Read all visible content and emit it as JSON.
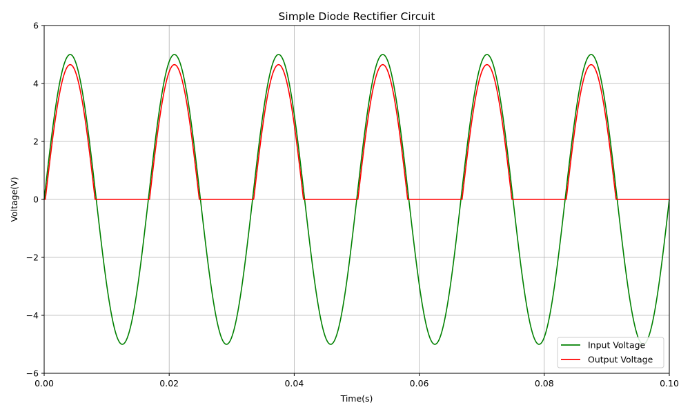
{
  "chart_data": {
    "type": "line",
    "title": "Simple Diode Rectifier Circuit",
    "xlabel": "Time(s)",
    "ylabel": "Voltage(V)",
    "xlim": [
      0.0,
      0.1
    ],
    "ylim": [
      -6,
      6
    ],
    "grid": true,
    "legend_position": "lower-right",
    "x_ticks": [
      "0.00",
      "0.02",
      "0.04",
      "0.06",
      "0.08",
      "0.10"
    ],
    "y_ticks": [
      "−6",
      "−4",
      "−2",
      "0",
      "2",
      "4",
      "6"
    ],
    "signal": {
      "frequency_hz": 60,
      "amplitude_v": 5.0,
      "diode_drop_v": 0.35
    },
    "series": [
      {
        "name": "Input Voltage",
        "color": "#008000",
        "formula": "5*sin(2*pi*60*t)"
      },
      {
        "name": "Output Voltage",
        "color": "#ff0000",
        "formula": "max(0, 5*sin(2*pi*60*t) - 0.35)"
      }
    ]
  }
}
